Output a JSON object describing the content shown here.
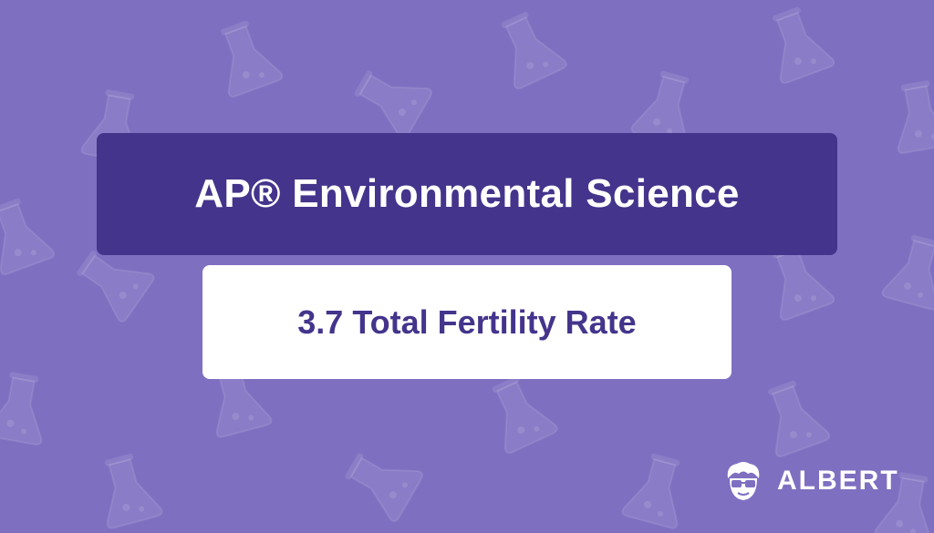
{
  "background": {
    "color": "#7f6fc1",
    "pattern_icon": "flask-icon"
  },
  "course": {
    "title": "AP® Environmental Science",
    "banner_color": "#44348c"
  },
  "topic": {
    "title": "3.7 Total Fertility Rate",
    "text_color": "#44348c"
  },
  "brand": {
    "name": "ALBERT",
    "logo_icon": "albert-mascot-icon"
  }
}
